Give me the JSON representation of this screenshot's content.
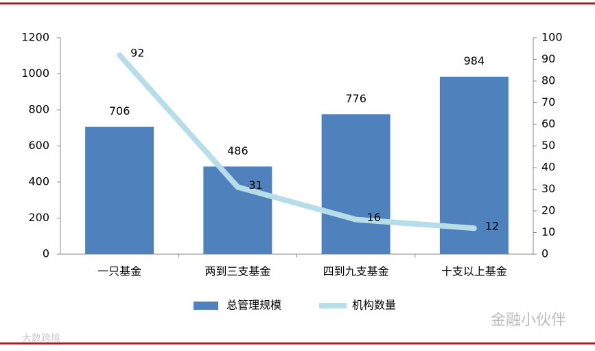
{
  "chart_data": {
    "type": "bar",
    "categories": [
      "一只基金",
      "两到三支基金",
      "四到九支基金",
      "十支以上基金"
    ],
    "series": [
      {
        "name": "总管理规模",
        "type": "bar",
        "color": "#4f81bd",
        "values": [
          706,
          486,
          776,
          984
        ]
      },
      {
        "name": "机构数量",
        "type": "line",
        "axis": "y2",
        "color": "#b7dde8",
        "values": [
          92,
          31,
          16,
          12
        ]
      }
    ],
    "ylim": [
      0,
      1200
    ],
    "yticks": [
      0,
      200,
      400,
      600,
      800,
      1000,
      1200
    ],
    "y2lim": [
      0,
      100
    ],
    "y2ticks": [
      0,
      10,
      20,
      30,
      40,
      50,
      60,
      70,
      80,
      90,
      100
    ],
    "legend": "bottom",
    "watermark": "金融小伙伴",
    "source_watermark": "大数跨境"
  }
}
